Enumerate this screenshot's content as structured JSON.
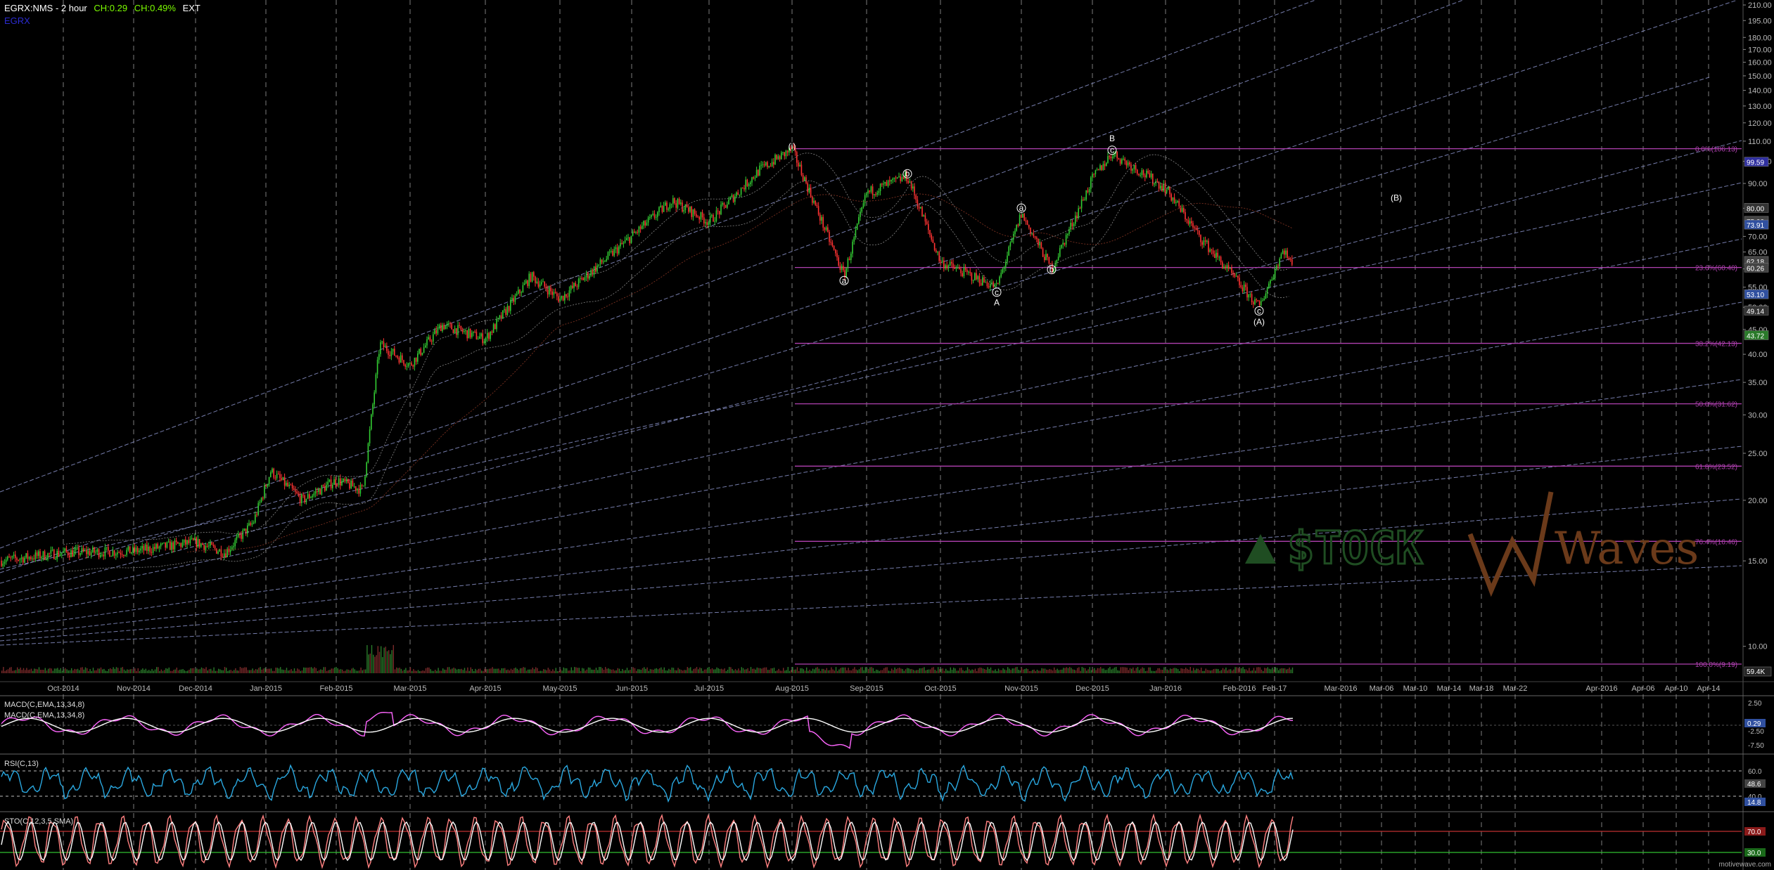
{
  "header": {
    "symbol": "EGRX:NMS - 2 hour",
    "change": "CH:0.29",
    "change_pct": "CH:0.49%",
    "session": "EXT",
    "sublabel": "EGRX"
  },
  "panels": {
    "macd_label_1": "MACD(C,EMA,13,34,8)",
    "macd_label_2": "MACD(C,EMA,13,34,8)",
    "rsi_label": "RSI(C,13)",
    "stoch_label": "STO(C,12,3,5,SMA)"
  },
  "credit": "motivewave.com",
  "colors": {
    "background": "#000000",
    "bull_candle": "#33cc33",
    "bear_candle": "#ff3333",
    "fib_line": "#b040b0",
    "fan_line": "#8a92c8",
    "macd": "#ff66ff",
    "macd_signal": "#ffffff",
    "rsi": "#2aa8e0",
    "stoch": "#ff8080",
    "watermark_green": "#1f4d22",
    "watermark_brown": "#6b3a1a"
  },
  "chart_data": {
    "type": "candlestick",
    "scale": "log",
    "timeframe": "2 hour",
    "price_axis": {
      "ticks": [
        10,
        15,
        20,
        25,
        30,
        35,
        40,
        45,
        50,
        55,
        60,
        65,
        70,
        80,
        90,
        100,
        110,
        120,
        130,
        140,
        150,
        160,
        170,
        180,
        195,
        210
      ],
      "tick_labels": [
        "10.00",
        "15.00",
        "20.00",
        "25.00",
        "30.00",
        "35.00",
        "40.00",
        "45.00",
        "50.00",
        "55.00",
        "60.00",
        "65.00",
        "70.00",
        "80.00",
        "90.00",
        "100.00",
        "110.00",
        "120.00",
        "130.00",
        "140.00",
        "150.00",
        "160.00",
        "170.00",
        "180.00",
        "195.00",
        "210.00"
      ],
      "range": [
        8.8,
        215
      ]
    },
    "time_axis": {
      "labels": [
        "Oct-2014",
        "Nov-2014",
        "Dec-2014",
        "Jan-2015",
        "Feb-2015",
        "Mar-2015",
        "Apr-2015",
        "May-2015",
        "Jun-2015",
        "Jul-2015",
        "Aug-2015",
        "Sep-2015",
        "Oct-2015",
        "Nov-2015",
        "Dec-2015",
        "Jan-2016",
        "Feb-2016",
        "Feb-17",
        "Mar-2016",
        "Mar-06",
        "Mar-10",
        "Mar-14",
        "Mar-18",
        "Mar-22",
        "Apr-2016",
        "Apr-06",
        "Apr-10",
        "Apr-14"
      ]
    },
    "price_path": [
      {
        "t": "Sep-2014",
        "p": 15.0
      },
      {
        "t": "Oct-2014",
        "p": 15.6
      },
      {
        "t": "Nov-2014",
        "p": 15.7
      },
      {
        "t": "Dec-2014",
        "p": 16.4
      },
      {
        "t": "mid-Dec-2014",
        "p": 15.6
      },
      {
        "t": "early-Jan-2015",
        "p": 18.0
      },
      {
        "t": "mid-Jan-2015",
        "p": 23.0
      },
      {
        "t": "late-Jan-2015",
        "p": 20.0
      },
      {
        "t": "Feb-2015",
        "p": 22.0
      },
      {
        "t": "mid-Feb-2015",
        "p": 21.0
      },
      {
        "t": "late-Feb-2015",
        "p": 42.0
      },
      {
        "t": "Mar-2015",
        "p": 38.0
      },
      {
        "t": "mid-Mar-2015",
        "p": 46.0
      },
      {
        "t": "Apr-2015",
        "p": 43.0
      },
      {
        "t": "mid-Apr-2015",
        "p": 58.0
      },
      {
        "t": "May-2015",
        "p": 52.0
      },
      {
        "t": "Jun-2015",
        "p": 70.0
      },
      {
        "t": "mid-Jun-2015",
        "p": 83.0
      },
      {
        "t": "Jul-2015",
        "p": 75.0
      },
      {
        "t": "mid-Jul-2015",
        "p": 96.0
      },
      {
        "t": "Aug-2015",
        "p": 106.0
      },
      {
        "t": "late-Aug-2015",
        "p": 58.0
      },
      {
        "t": "Sep-2015",
        "p": 86.0
      },
      {
        "t": "mid-Sep-2015",
        "p": 93.0
      },
      {
        "t": "Oct-2015",
        "p": 62.0
      },
      {
        "t": "mid-Oct-2015",
        "p": 55.0
      },
      {
        "t": "Nov-2015",
        "p": 78.0
      },
      {
        "t": "mid-Nov-2015",
        "p": 60.0
      },
      {
        "t": "Dec-2015",
        "p": 92.0
      },
      {
        "t": "mid-Dec-2015",
        "p": 104.0
      },
      {
        "t": "Jan-2016",
        "p": 88.0
      },
      {
        "t": "mid-Jan-2016",
        "p": 70.0
      },
      {
        "t": "Feb-2016",
        "p": 50.0
      },
      {
        "t": "mid-Feb-2016",
        "p": 66.0
      },
      {
        "t": "Feb-17",
        "p": 60.26
      }
    ],
    "price_badges": [
      "99.59",
      "80.00",
      "75.22",
      "73.91",
      "62.18",
      "60.26",
      "53.10",
      "49.14",
      "43.72"
    ],
    "fib_levels": [
      {
        "label": "0.0%(106.13)",
        "value": 106.13
      },
      {
        "label": "23.6%(60.40)",
        "value": 60.4
      },
      {
        "label": "38.2%(42.13)",
        "value": 42.13
      },
      {
        "label": "50.0%(31.62)",
        "value": 31.62
      },
      {
        "label": "61.8%(23.52)",
        "value": 23.52
      },
      {
        "label": "76.4%(16.46)",
        "value": 16.46
      },
      {
        "label": "100.0%(9.19)",
        "value": 9.19
      }
    ],
    "volume_badge": "59.4K",
    "wave_labels": [
      {
        "text": "(i)",
        "t": "Aug-2015",
        "p": 106.0
      },
      {
        "text": "a",
        "t": "late-Aug-2015",
        "p": 56.0
      },
      {
        "text": "b",
        "t": "mid-Sep-2015",
        "p": 93.0
      },
      {
        "text": "c",
        "t": "mid-Oct-2015",
        "p": 53.0
      },
      {
        "text": "A",
        "t": "mid-Oct-2015",
        "p": 50.5
      },
      {
        "text": "a",
        "t": "Nov-2015",
        "p": 79.0
      },
      {
        "text": "b",
        "t": "mid-Nov-2015",
        "p": 59.0
      },
      {
        "text": "B",
        "t": "mid-Dec-2015",
        "p": 110.0
      },
      {
        "text": "c",
        "t": "mid-Dec-2015",
        "p": 104.0
      },
      {
        "text": "c",
        "t": "Feb-2016",
        "p": 48.5
      },
      {
        "text": "(A)",
        "t": "Feb-2016",
        "p": 46.0
      },
      {
        "text": "(B)",
        "t": "Mar-2016",
        "p": 83.0
      }
    ],
    "macd": {
      "ticks": [
        "2.50",
        "0.00",
        "-2.50",
        "-7.50"
      ],
      "badge": "0.29"
    },
    "rsi": {
      "ticks": [
        "60.0",
        "40.0"
      ],
      "badges": [
        "48.6",
        "14.8"
      ]
    },
    "stoch": {
      "ticks": [
        "70.0",
        "30.0"
      ],
      "badges": [
        "70.0",
        "30.0"
      ]
    },
    "watermark": {
      "left": "$TOCK",
      "right": "Waves"
    },
    "grid": true
  }
}
